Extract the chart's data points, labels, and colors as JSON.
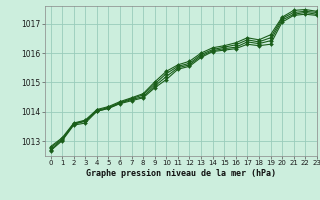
{
  "title": "Graphe pression niveau de la mer (hPa)",
  "bg_color": "#cceedd",
  "grid_color": "#99ccbb",
  "line_color": "#1a5e1a",
  "marker_color": "#1a5e1a",
  "xlim": [
    -0.5,
    23
  ],
  "ylim": [
    1012.5,
    1017.6
  ],
  "yticks": [
    1013,
    1014,
    1015,
    1016,
    1017
  ],
  "xticks": [
    0,
    1,
    2,
    3,
    4,
    5,
    6,
    7,
    8,
    9,
    10,
    11,
    12,
    13,
    14,
    15,
    16,
    17,
    18,
    19,
    20,
    21,
    22,
    23
  ],
  "series": [
    [
      1012.68,
      1013.02,
      1013.55,
      1013.62,
      1014.02,
      1014.12,
      1014.28,
      1014.38,
      1014.48,
      1014.82,
      1015.1,
      1015.45,
      1015.55,
      1015.85,
      1016.05,
      1016.1,
      1016.15,
      1016.3,
      1016.25,
      1016.3,
      1017.05,
      1017.28,
      1017.32,
      1017.28
    ],
    [
      1012.72,
      1013.05,
      1013.58,
      1013.68,
      1014.02,
      1014.12,
      1014.3,
      1014.42,
      1014.52,
      1014.88,
      1015.2,
      1015.5,
      1015.6,
      1015.9,
      1016.08,
      1016.15,
      1016.2,
      1016.38,
      1016.32,
      1016.42,
      1017.12,
      1017.32,
      1017.38,
      1017.32
    ],
    [
      1012.78,
      1013.08,
      1013.6,
      1013.7,
      1014.05,
      1014.15,
      1014.32,
      1014.45,
      1014.58,
      1014.95,
      1015.3,
      1015.55,
      1015.65,
      1015.95,
      1016.12,
      1016.2,
      1016.28,
      1016.45,
      1016.38,
      1016.52,
      1017.18,
      1017.38,
      1017.42,
      1017.38
    ],
    [
      1012.82,
      1013.12,
      1013.62,
      1013.72,
      1014.08,
      1014.18,
      1014.35,
      1014.48,
      1014.62,
      1015.02,
      1015.38,
      1015.6,
      1015.72,
      1016.0,
      1016.18,
      1016.25,
      1016.35,
      1016.52,
      1016.45,
      1016.62,
      1017.22,
      1017.45,
      1017.48,
      1017.42
    ]
  ]
}
